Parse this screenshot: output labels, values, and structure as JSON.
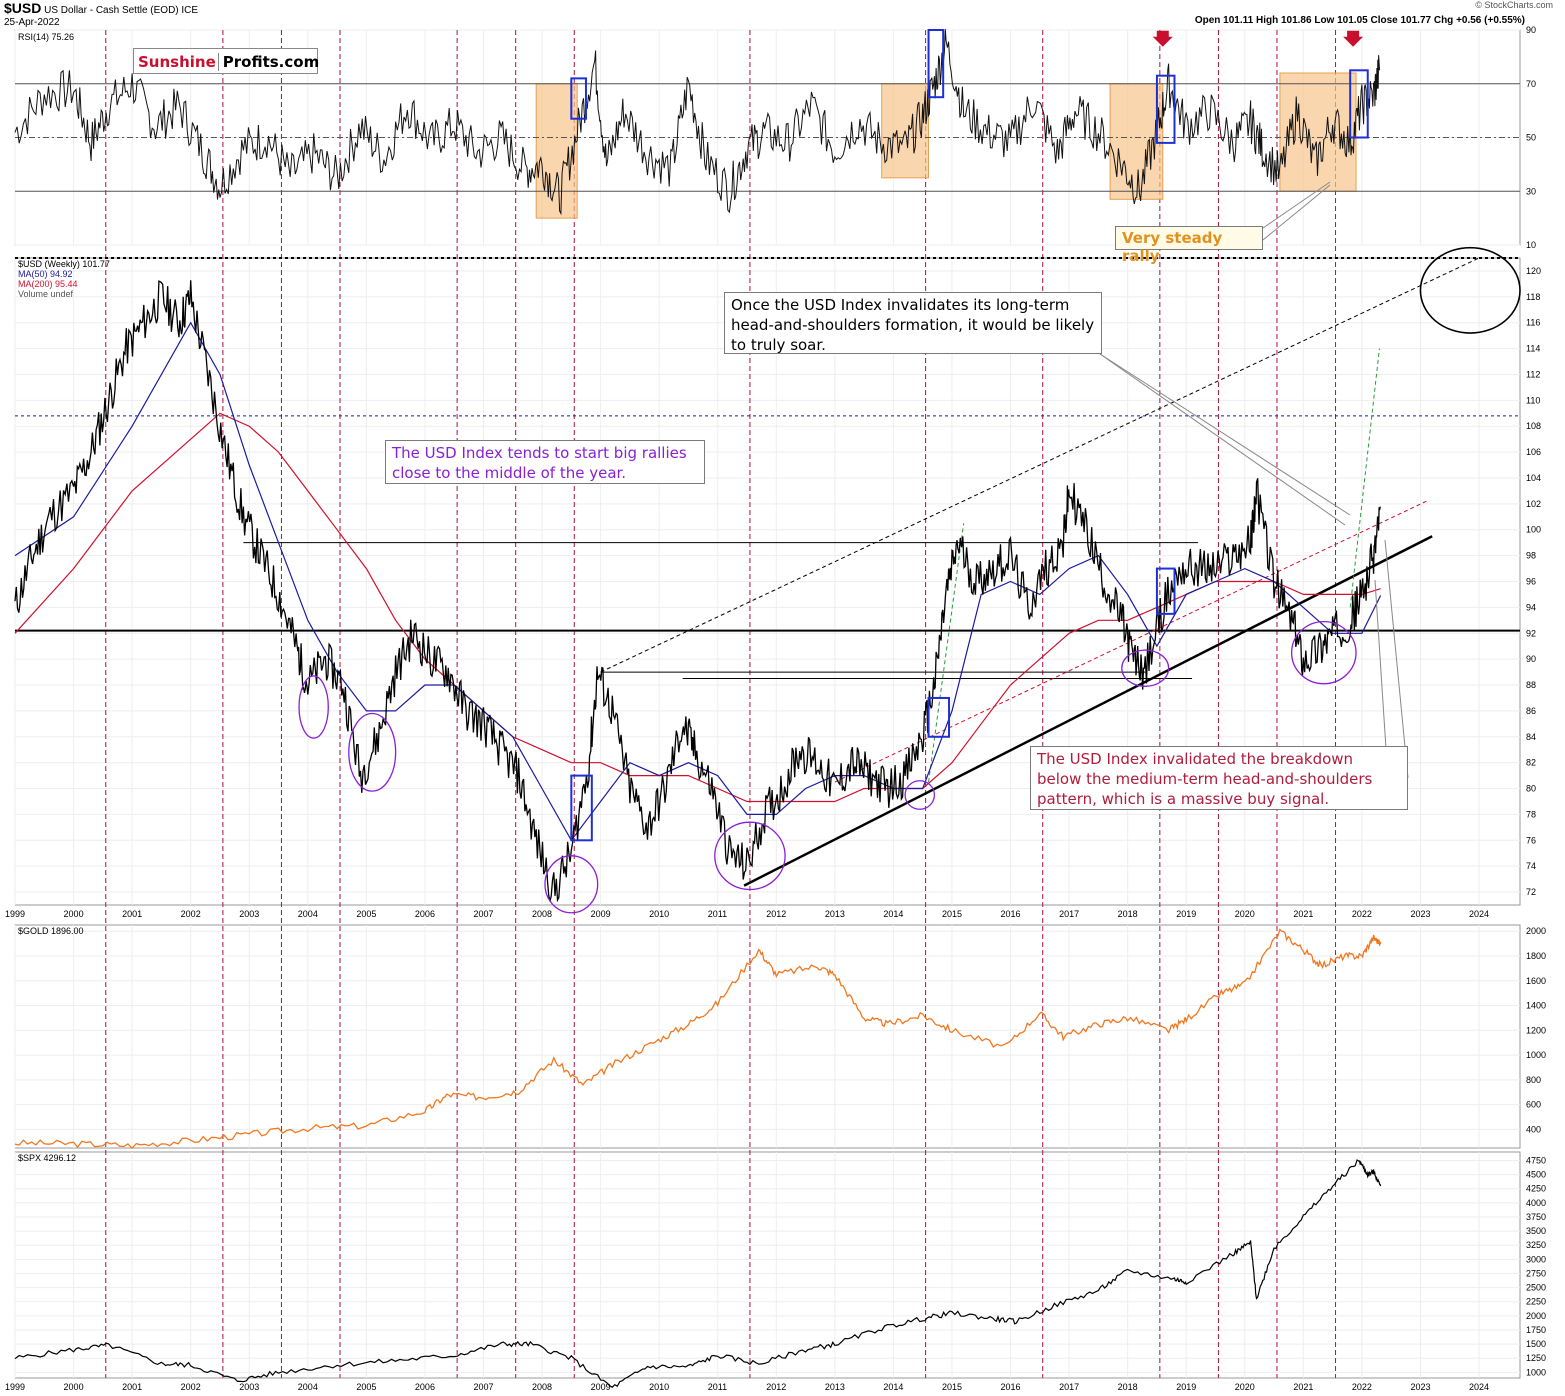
{
  "header": {
    "symbol": "$USD",
    "name": "US Dollar - Cash Settle (EOD)",
    "exchange": "ICE",
    "date": "25-Apr-2022",
    "ohlc": "Open 101.11  High 101.86  Low 101.05  Close 101.77  Chg +0.56 (+0.55%)",
    "watermark": "© StockCharts.com"
  },
  "logo": {
    "part1": "Sunshine",
    "part2": "Profits.com"
  },
  "colors": {
    "price": "#000000",
    "ma50": "#1a1aa0",
    "ma200": "#d0102e",
    "gold": "#f07820",
    "spx": "#000000",
    "annotation": "#8a1fd6",
    "highlight": "#f7c58a",
    "blue_box": "#1f2fd6"
  },
  "chart_data": [
    {
      "id": "rsi",
      "type": "line",
      "legend": "RSI(14) 75.26",
      "ylim": [
        10,
        90
      ],
      "yticks": [
        10,
        30,
        50,
        70,
        90
      ],
      "reference_lines": [
        30,
        50,
        70
      ],
      "x": [
        1999.0,
        1999.5,
        2000.0,
        2000.3,
        2000.6,
        2001.0,
        2001.4,
        2001.8,
        2002.2,
        2002.5,
        2002.9,
        2003.3,
        2003.7,
        2004.1,
        2004.5,
        2004.9,
        2005.3,
        2005.7,
        2006.1,
        2006.5,
        2006.9,
        2007.3,
        2007.7,
        2008.0,
        2008.3,
        2008.6,
        2008.9,
        2009.1,
        2009.4,
        2009.8,
        2010.2,
        2010.5,
        2010.8,
        2011.2,
        2011.5,
        2011.8,
        2012.2,
        2012.6,
        2013.0,
        2013.4,
        2013.8,
        2014.2,
        2014.5,
        2014.7,
        2014.9,
        2015.2,
        2015.6,
        2016.0,
        2016.4,
        2016.8,
        2017.1,
        2017.5,
        2017.9,
        2018.2,
        2018.5,
        2018.7,
        2019.0,
        2019.4,
        2019.8,
        2020.1,
        2020.3,
        2020.6,
        2020.9,
        2021.2,
        2021.5,
        2021.8,
        2022.0,
        2022.2,
        2022.3
      ],
      "values": [
        52,
        66,
        68,
        48,
        62,
        70,
        54,
        62,
        45,
        32,
        46,
        50,
        36,
        44,
        35,
        54,
        42,
        62,
        48,
        55,
        44,
        50,
        38,
        40,
        28,
        52,
        78,
        40,
        60,
        44,
        38,
        70,
        42,
        30,
        46,
        52,
        48,
        62,
        45,
        56,
        48,
        46,
        58,
        70,
        85,
        60,
        52,
        48,
        64,
        44,
        60,
        52,
        40,
        30,
        52,
        70,
        54,
        60,
        48,
        56,
        46,
        36,
        60,
        40,
        56,
        48,
        62,
        66,
        75
      ],
      "highlight_boxes": [
        {
          "x0": 2007.9,
          "x1": 2008.6,
          "y0": 20,
          "y1": 70
        },
        {
          "x0": 2013.8,
          "x1": 2014.6,
          "y0": 35,
          "y1": 70
        },
        {
          "x0": 2017.7,
          "x1": 2018.6,
          "y0": 27,
          "y1": 70
        },
        {
          "x0": 2020.6,
          "x1": 2021.9,
          "y0": 30,
          "y1": 74
        }
      ],
      "blue_boxes": [
        {
          "x0": 2008.5,
          "x1": 2008.75,
          "y0": 57,
          "y1": 72
        },
        {
          "x0": 2014.6,
          "x1": 2014.85,
          "y0": 65,
          "y1": 90
        },
        {
          "x0": 2018.5,
          "x1": 2018.8,
          "y0": 48,
          "y1": 73
        },
        {
          "x0": 2021.8,
          "x1": 2022.1,
          "y0": 50,
          "y1": 75
        }
      ],
      "down_arrows": [
        2018.6,
        2021.85
      ]
    },
    {
      "id": "usd",
      "type": "line",
      "legend": [
        "$USD (Weekly) 101.77",
        "MA(50) 94.92",
        "MA(200) 95.44",
        "Volume undef"
      ],
      "ylim": [
        71,
        121
      ],
      "yticks": [
        72,
        74,
        76,
        78,
        80,
        82,
        84,
        86,
        88,
        90,
        92,
        94,
        96,
        98,
        100,
        102,
        104,
        106,
        108,
        110,
        112,
        114,
        116,
        118,
        120
      ],
      "x": [
        1999.0,
        1999.3,
        1999.6,
        2000.0,
        2000.3,
        2000.6,
        2000.9,
        2001.2,
        2001.5,
        2001.8,
        2002.0,
        2002.3,
        2002.6,
        2002.9,
        2003.2,
        2003.5,
        2003.8,
        2004.0,
        2004.3,
        2004.6,
        2004.9,
        2005.2,
        2005.5,
        2005.8,
        2006.1,
        2006.4,
        2006.7,
        2007.0,
        2007.3,
        2007.6,
        2007.9,
        2008.2,
        2008.5,
        2008.8,
        2008.95,
        2009.2,
        2009.5,
        2009.8,
        2010.1,
        2010.4,
        2010.6,
        2010.9,
        2011.2,
        2011.5,
        2011.8,
        2012.1,
        2012.4,
        2012.7,
        2013.0,
        2013.3,
        2013.6,
        2013.9,
        2014.2,
        2014.5,
        2014.7,
        2014.9,
        2015.1,
        2015.4,
        2015.7,
        2016.0,
        2016.3,
        2016.6,
        2016.9,
        2017.0,
        2017.3,
        2017.6,
        2017.9,
        2018.1,
        2018.3,
        2018.6,
        2018.9,
        2019.2,
        2019.5,
        2019.8,
        2020.1,
        2020.2,
        2020.5,
        2020.8,
        2021.0,
        2021.3,
        2021.5,
        2021.8,
        2022.0,
        2022.2,
        2022.32
      ],
      "values": [
        94,
        98,
        101,
        103,
        106,
        110,
        114,
        116,
        118,
        116,
        118,
        112,
        106,
        101,
        98,
        95,
        91,
        88,
        90,
        88,
        81,
        84,
        89,
        92,
        90,
        89,
        86,
        85,
        83,
        81,
        76,
        72,
        75,
        82,
        89,
        86,
        80,
        77,
        80,
        85,
        83,
        80,
        75,
        74,
        78,
        80,
        83,
        82,
        80,
        82,
        81,
        80,
        81,
        84,
        88,
        95,
        99,
        96,
        97,
        98,
        94,
        97,
        99,
        103,
        100,
        96,
        93,
        90,
        89,
        94,
        97,
        97,
        97,
        98,
        99,
        103,
        96,
        93,
        90,
        91,
        92,
        93,
        95,
        98,
        101.77
      ],
      "ma50_x": [
        1999.0,
        2000.0,
        2001.0,
        2002.0,
        2002.5,
        2003.0,
        2003.5,
        2004.0,
        2004.5,
        2005.0,
        2005.5,
        2006.0,
        2006.5,
        2007.0,
        2007.5,
        2008.0,
        2008.5,
        2009.0,
        2009.5,
        2010.0,
        2010.5,
        2011.0,
        2011.5,
        2012.0,
        2012.5,
        2013.0,
        2013.5,
        2014.0,
        2014.5,
        2015.0,
        2015.5,
        2016.0,
        2016.5,
        2017.0,
        2017.5,
        2018.0,
        2018.5,
        2019.0,
        2019.5,
        2020.0,
        2020.5,
        2021.0,
        2021.5,
        2022.0,
        2022.32
      ],
      "ma50_values": [
        98,
        101,
        108,
        116,
        112,
        105,
        99,
        93,
        89,
        86,
        86,
        88,
        88,
        86,
        84,
        80,
        76,
        79,
        82,
        81,
        82,
        81,
        78,
        78,
        80,
        81,
        81,
        80,
        80,
        86,
        95,
        96,
        95,
        97,
        98,
        95,
        91,
        95,
        96,
        97,
        96,
        94,
        92,
        92,
        94.92
      ],
      "ma200_x": [
        1999.0,
        2000.0,
        2001.0,
        2002.0,
        2002.5,
        2003.0,
        2003.5,
        2004.0,
        2004.5,
        2005.0,
        2005.5,
        2006.0,
        2006.5,
        2007.0,
        2007.5,
        2008.0,
        2008.5,
        2009.0,
        2009.5,
        2010.0,
        2010.5,
        2011.0,
        2011.5,
        2012.0,
        2012.5,
        2013.0,
        2013.5,
        2014.0,
        2014.5,
        2015.0,
        2015.5,
        2016.0,
        2016.5,
        2017.0,
        2017.5,
        2018.0,
        2018.5,
        2019.0,
        2019.5,
        2020.0,
        2020.5,
        2021.0,
        2021.5,
        2022.0,
        2022.32
      ],
      "ma200_values": [
        92,
        97,
        103,
        107,
        109,
        108,
        106,
        103,
        100,
        97,
        93,
        90,
        88,
        86,
        84,
        83,
        82,
        82,
        81,
        81,
        81,
        80,
        79,
        79,
        79,
        79,
        80,
        80,
        80,
        82,
        85,
        88,
        90,
        92,
        93,
        93,
        94,
        95,
        96,
        96,
        96,
        95,
        95,
        95,
        95.44
      ],
      "horizontal_lines": [
        {
          "y": 92.2,
          "style": "solid-thick"
        },
        {
          "y": 108.8,
          "style": "dashed-blue"
        },
        {
          "y": 121.0,
          "style": "dashed-black"
        },
        {
          "y": 99.0,
          "x0": 2002.9,
          "x1": 2019.2
        },
        {
          "y": 89.0,
          "x0": 2009.0,
          "x1": 2018.3
        },
        {
          "y": 88.5,
          "x0": 2010.4,
          "x1": 2019.1
        }
      ],
      "trend_lines": [
        {
          "x0": 2011.45,
          "y0": 72.5,
          "x1": 2023.2,
          "y1": 99.5,
          "style": "solid-thick"
        },
        {
          "x0": 2013.0,
          "y0": 80.5,
          "x1": 2023.1,
          "y1": 102.2,
          "style": "dashed-red"
        },
        {
          "x0": 2009.0,
          "y0": 89.0,
          "x1": 2024.0,
          "y1": 121.0,
          "style": "dashed-black"
        },
        {
          "x0": 2014.6,
          "y0": 80.5,
          "x1": 2015.2,
          "y1": 100.5,
          "style": "dashed-green"
        },
        {
          "x0": 2021.8,
          "y0": 94.0,
          "x1": 2022.3,
          "y1": 114.0,
          "style": "dashed-green"
        }
      ],
      "circles": [
        {
          "x": 2004.1,
          "y": 86.3,
          "rx": 0.25,
          "ry": 2.4
        },
        {
          "x": 2005.1,
          "y": 82.8,
          "rx": 0.4,
          "ry": 3.0
        },
        {
          "x": 2008.5,
          "y": 72.6,
          "rx": 0.45,
          "ry": 2.2
        },
        {
          "x": 2011.55,
          "y": 74.8,
          "rx": 0.6,
          "ry": 2.6
        },
        {
          "x": 2014.45,
          "y": 79.5,
          "rx": 0.25,
          "ry": 1.1
        },
        {
          "x": 2018.3,
          "y": 89.3,
          "rx": 0.4,
          "ry": 1.4
        },
        {
          "x": 2021.35,
          "y": 90.5,
          "rx": 0.55,
          "ry": 2.4
        }
      ],
      "target_ellipse": {
        "x": 2023.85,
        "y": 118.5,
        "rx": 0.85,
        "ry": 3.3
      },
      "blue_boxes": [
        {
          "x0": 2008.5,
          "x1": 2008.85,
          "y0": 76,
          "y1": 81
        },
        {
          "x0": 2014.6,
          "x1": 2014.95,
          "y0": 84,
          "y1": 87
        },
        {
          "x0": 2018.5,
          "x1": 2018.8,
          "y0": 93.5,
          "y1": 97
        }
      ]
    },
    {
      "id": "gold",
      "type": "line",
      "legend": "$GOLD 1896.00",
      "ylim": [
        250,
        2050
      ],
      "yticks": [
        400,
        600,
        800,
        1000,
        1200,
        1400,
        1600,
        1800,
        2000
      ],
      "x": [
        1999.0,
        2000.0,
        2001.0,
        2002.0,
        2003.0,
        2004.0,
        2005.0,
        2006.0,
        2006.4,
        2007.0,
        2007.6,
        2008.2,
        2008.7,
        2009.2,
        2009.9,
        2010.5,
        2011.0,
        2011.7,
        2012.0,
        2012.7,
        2013.0,
        2013.5,
        2013.9,
        2014.5,
        2015.0,
        2015.9,
        2016.5,
        2016.9,
        2017.5,
        2018.0,
        2018.7,
        2019.0,
        2019.6,
        2020.0,
        2020.6,
        2021.0,
        2021.3,
        2021.7,
        2022.0,
        2022.2,
        2022.32
      ],
      "values": [
        290,
        285,
        270,
        310,
        360,
        410,
        430,
        550,
        680,
        660,
        710,
        960,
        760,
        920,
        1100,
        1250,
        1420,
        1850,
        1650,
        1720,
        1650,
        1300,
        1250,
        1320,
        1200,
        1060,
        1340,
        1150,
        1250,
        1300,
        1200,
        1290,
        1500,
        1570,
        2000,
        1850,
        1720,
        1800,
        1800,
        1950,
        1896
      ]
    },
    {
      "id": "spx",
      "type": "line",
      "legend": "$SPX 4296.12",
      "ylim": [
        900,
        4900
      ],
      "yticks": [
        1000,
        1250,
        1500,
        1750,
        2000,
        2250,
        2500,
        2750,
        3000,
        3250,
        3500,
        3750,
        4000,
        4250,
        4500,
        4750
      ],
      "x": [
        1999.0,
        2000.0,
        2000.6,
        2001.5,
        2002.0,
        2002.8,
        2003.5,
        2004.5,
        2005.5,
        2006.5,
        2007.3,
        2007.8,
        2008.5,
        2009.2,
        2009.8,
        2010.5,
        2011.0,
        2011.7,
        2012.5,
        2013.0,
        2013.8,
        2014.5,
        2015.0,
        2015.7,
        2016.1,
        2016.8,
        2017.5,
        2018.0,
        2018.8,
        2019.0,
        2019.8,
        2020.1,
        2020.2,
        2020.5,
        2021.0,
        2021.5,
        2021.95,
        2022.1,
        2022.2,
        2022.32
      ],
      "values": [
        1250,
        1400,
        1480,
        1150,
        1130,
        850,
        1000,
        1130,
        1210,
        1300,
        1500,
        1500,
        1250,
        730,
        1100,
        1100,
        1300,
        1150,
        1400,
        1500,
        1780,
        1950,
        2050,
        1950,
        1900,
        2200,
        2450,
        2800,
        2650,
        2600,
        3100,
        3300,
        2300,
        3200,
        3750,
        4300,
        4750,
        4500,
        4550,
        4296
      ]
    }
  ],
  "x_axis": {
    "range": [
      1999.0,
      2024.7
    ],
    "year_labels": [
      "1999",
      "2000",
      "2001",
      "2002",
      "2003",
      "2004",
      "2005",
      "2006",
      "2007",
      "2008",
      "2009",
      "2010",
      "2011",
      "2012",
      "2013",
      "2014",
      "2015",
      "2016",
      "2017",
      "2018",
      "2019",
      "2020",
      "2021",
      "2022",
      "2023",
      "2024"
    ],
    "cycle_lines": [
      2000.55,
      2002.55,
      2003.55,
      2004.55,
      2006.55,
      2007.55,
      2008.55,
      2011.55,
      2014.55,
      2016.55,
      2018.55,
      2019.55,
      2020.55,
      2021.55
    ]
  },
  "annotations": {
    "top_right": "Once the USD Index invalidates its long-term head-and-shoulders formation, it would be likely to truly soar.",
    "middle": "The USD Index tends to start big rallies close to the middle of the year.",
    "bottom_right": "The USD Index invalidated the breakdown below the medium-term head-and-shoulders pattern, which is a massive buy signal.",
    "rally": "Very steady rally"
  }
}
